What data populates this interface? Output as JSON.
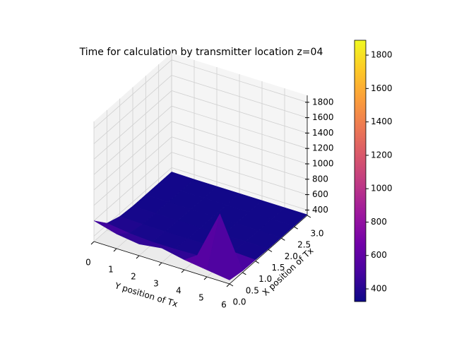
{
  "chart_data": {
    "type": "surface",
    "title": "Time for calculation by transmitter location z=04",
    "xlabel": "Y position of Tx",
    "ylabel": "X position of Tx",
    "x": [
      0,
      1,
      2,
      3,
      4,
      5,
      6
    ],
    "y": [
      0,
      0.5,
      1,
      1.5,
      2,
      2.5,
      3
    ],
    "z": [
      [
        600,
        520,
        480,
        520,
        460,
        420,
        380
      ],
      [
        420,
        380,
        360,
        360,
        370,
        1000,
        350
      ],
      [
        360,
        350,
        345,
        345,
        345,
        360,
        345
      ],
      [
        345,
        345,
        340,
        340,
        340,
        345,
        340
      ],
      [
        345,
        340,
        340,
        340,
        340,
        340,
        340
      ],
      [
        345,
        340,
        340,
        340,
        340,
        340,
        340
      ],
      [
        345,
        340,
        340,
        340,
        340,
        340,
        340
      ]
    ],
    "xlim": [
      0,
      6
    ],
    "ylim": [
      0,
      3
    ],
    "zlim": [
      330,
      1890
    ],
    "xticks": [
      0,
      1,
      2,
      3,
      4,
      5,
      6
    ],
    "yticks": [
      {
        "value": 0,
        "label": "0.0"
      },
      0.5,
      {
        "value": 1,
        "label": "1.0"
      },
      1.5,
      {
        "value": 2,
        "label": "2.0"
      },
      2.5,
      {
        "value": 3,
        "label": "3.0"
      }
    ],
    "zticks": [
      400,
      600,
      800,
      1000,
      1200,
      1400,
      1600,
      1800
    ],
    "colormap": "plasma",
    "clim": [
      324,
      1889
    ],
    "colorbar_ticks": [
      400,
      600,
      800,
      1000,
      1200,
      1400,
      1600,
      1800
    ]
  }
}
